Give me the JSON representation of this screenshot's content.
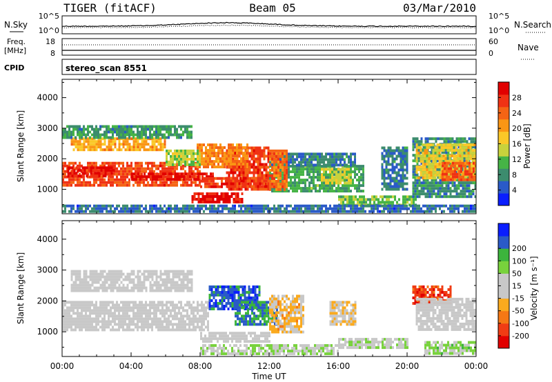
{
  "header": {
    "station": "TIGER (fitACF)",
    "beam": "Beam 05",
    "date": "03/Mar/2010"
  },
  "nsky_panel": {
    "left_label": "N.Sky",
    "left_ticks": [
      "10^5",
      "10^0"
    ],
    "right_label": "N.Search",
    "right_ticks": [
      "10^5",
      "10^0"
    ]
  },
  "freq_panel": {
    "left_label_1": "Freq.",
    "left_label_2": "[MHz]",
    "left_ticks": [
      "18",
      "8"
    ],
    "right_label": "Nave",
    "right_ticks": [
      "60",
      "0"
    ]
  },
  "cpid_panel": {
    "label": "CPID",
    "value": "stereo_scan 8551"
  },
  "chart_data": [
    {
      "type": "heatmap",
      "name": "power",
      "ylabel": "Slant Range [km]",
      "y_ticks": [
        1000,
        2000,
        3000,
        4000
      ],
      "ylim": [
        200,
        4600
      ],
      "x_ticks": [
        "00:00",
        "04:00",
        "08:00",
        "12:00",
        "16:00",
        "20:00",
        "00:00"
      ],
      "xlim_hours": [
        0,
        24
      ],
      "colorbar": {
        "label": "Power [dB]",
        "ticks": [
          4,
          8,
          12,
          16,
          20,
          24,
          28
        ],
        "range": [
          0,
          32
        ],
        "colors": [
          "#0a1eff",
          "#2a5ac8",
          "#3c8c6e",
          "#46b446",
          "#c8d23c",
          "#fac828",
          "#fa9614",
          "#f56414",
          "#f03214",
          "#e10000"
        ]
      },
      "regions": [
        {
          "t0": 0.0,
          "t1": 8.0,
          "r0": 1100,
          "r1": 1900,
          "level": 26
        },
        {
          "t0": 0.3,
          "t1": 3.0,
          "r0": 1450,
          "r1": 1750,
          "level": 29
        },
        {
          "t0": 4.0,
          "t1": 8.8,
          "r0": 1300,
          "r1": 1550,
          "level": 30
        },
        {
          "t0": 8.0,
          "t1": 12.0,
          "r0": 1100,
          "r1": 1400,
          "level": 27
        },
        {
          "t0": 7.5,
          "t1": 10.5,
          "r0": 600,
          "r1": 900,
          "level": 30
        },
        {
          "t0": 9.5,
          "t1": 12.0,
          "r0": 1000,
          "r1": 2400,
          "level": 27
        },
        {
          "t0": 7.8,
          "t1": 10.8,
          "r0": 1700,
          "r1": 2500,
          "level": 22
        },
        {
          "t0": 6.0,
          "t1": 8.0,
          "r0": 1800,
          "r1": 2300,
          "level": 14
        },
        {
          "t0": 0.5,
          "t1": 6.0,
          "r0": 2300,
          "r1": 2700,
          "level": 20
        },
        {
          "t0": 0.0,
          "t1": 7.5,
          "r0": 2700,
          "r1": 3100,
          "level": 9
        },
        {
          "t0": 12.0,
          "t1": 17.5,
          "r0": 900,
          "r1": 1800,
          "level": 10
        },
        {
          "t0": 12.0,
          "t1": 17.0,
          "r0": 1800,
          "r1": 2200,
          "level": 7
        },
        {
          "t0": 15.0,
          "t1": 16.7,
          "r0": 1200,
          "r1": 1700,
          "level": 15
        },
        {
          "t0": 12.0,
          "t1": 13.0,
          "r0": 1000,
          "r1": 2300,
          "level": 24
        },
        {
          "t0": 16.0,
          "t1": 20.5,
          "r0": 500,
          "r1": 800,
          "level": 12
        },
        {
          "t0": 18.5,
          "t1": 20.0,
          "r0": 1000,
          "r1": 2400,
          "level": 7
        },
        {
          "t0": 20.3,
          "t1": 24.0,
          "r0": 800,
          "r1": 2700,
          "level": 8
        },
        {
          "t0": 20.5,
          "t1": 24.0,
          "r0": 1400,
          "r1": 2500,
          "level": 17
        },
        {
          "t0": 22.0,
          "t1": 24.0,
          "r0": 1300,
          "r1": 1900,
          "level": 25
        },
        {
          "t0": 0.0,
          "t1": 24.0,
          "r0": 250,
          "r1": 500,
          "level": 6
        }
      ]
    },
    {
      "type": "heatmap",
      "name": "velocity",
      "ylabel": "Slant Range [km]",
      "y_ticks": [
        1000,
        2000,
        3000,
        4000
      ],
      "ylim": [
        200,
        4600
      ],
      "x_ticks": [
        "00:00",
        "04:00",
        "08:00",
        "12:00",
        "16:00",
        "20:00",
        "00:00"
      ],
      "xlim_hours": [
        0,
        24
      ],
      "xlabel": "Time UT",
      "colorbar": {
        "label": "Velocity [m s⁻¹]",
        "ticks": [
          -200,
          -100,
          -50,
          -15,
          15,
          50,
          100,
          200
        ],
        "range": [
          -250,
          250
        ],
        "colors": [
          "#e10000",
          "#f03c14",
          "#f57814",
          "#faaa1e",
          "#c8c8c8",
          "#c8c8c8",
          "#78d23c",
          "#3cb43c",
          "#2a5ac8",
          "#0a1eff"
        ]
      },
      "regions": [
        {
          "t0": 0.0,
          "t1": 8.5,
          "r0": 1100,
          "r1": 2000,
          "level": 0
        },
        {
          "t0": 0.5,
          "t1": 7.5,
          "r0": 2300,
          "r1": 3000,
          "level": 0
        },
        {
          "t0": 8.5,
          "t1": 11.5,
          "r0": 1700,
          "r1": 2500,
          "level": 180
        },
        {
          "t0": 10.0,
          "t1": 12.5,
          "r0": 1200,
          "r1": 2000,
          "level": 150
        },
        {
          "t0": 8.0,
          "t1": 12.0,
          "r0": 700,
          "r1": 1000,
          "level": 0
        },
        {
          "t0": 12.0,
          "t1": 14.0,
          "r0": 1000,
          "r1": 2200,
          "level": -60
        },
        {
          "t0": 15.5,
          "t1": 17.0,
          "r0": 1200,
          "r1": 2000,
          "level": -40
        },
        {
          "t0": 8.0,
          "t1": 16.0,
          "r0": 300,
          "r1": 600,
          "level": 40
        },
        {
          "t0": 16.0,
          "t1": 20.0,
          "r0": 500,
          "r1": 800,
          "level": 30
        },
        {
          "t0": 20.3,
          "t1": 22.5,
          "r0": 1900,
          "r1": 2500,
          "level": -180
        },
        {
          "t0": 20.5,
          "t1": 24.0,
          "r0": 1100,
          "r1": 2100,
          "level": 0
        },
        {
          "t0": 21.0,
          "t1": 24.0,
          "r0": 300,
          "r1": 700,
          "level": 60
        }
      ]
    }
  ]
}
